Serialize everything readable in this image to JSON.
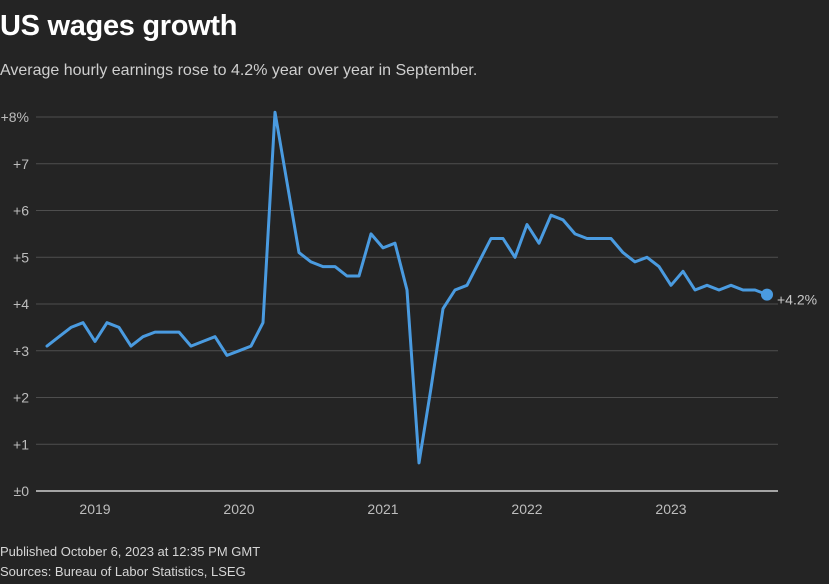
{
  "header": {
    "title": "US wages growth",
    "subtitle": "Average hourly earnings rose to 4.2% year over year in September."
  },
  "footer": {
    "published": "Published October 6, 2023 at 12:35 PM GMT",
    "sources": "Sources: Bureau of Labor Statistics, LSEG"
  },
  "colors": {
    "background": "#242424",
    "line": "#4a9be0",
    "gridline": "#4e4e4e",
    "baseline": "#cfcfcf",
    "text": "#bdbdbd"
  },
  "chart_data": {
    "type": "line",
    "title": "US wages growth",
    "subtitle": "Average hourly earnings rose to 4.2% year over year in September.",
    "xlabel": "",
    "ylabel": "",
    "ylim": [
      0,
      8
    ],
    "grid": true,
    "legend": "none",
    "yticks": [
      {
        "value": 0,
        "label": "±0"
      },
      {
        "value": 1,
        "label": "+1"
      },
      {
        "value": 2,
        "label": "+2"
      },
      {
        "value": 3,
        "label": "+3"
      },
      {
        "value": 4,
        "label": "+4"
      },
      {
        "value": 5,
        "label": "+5"
      },
      {
        "value": 6,
        "label": "+6"
      },
      {
        "value": 7,
        "label": "+7"
      },
      {
        "value": 8,
        "label": "+8%"
      }
    ],
    "xticks": [
      {
        "month_index": 4,
        "label": "2019"
      },
      {
        "month_index": 16,
        "label": "2020"
      },
      {
        "month_index": 28,
        "label": "2021"
      },
      {
        "month_index": 40,
        "label": "2022"
      },
      {
        "month_index": 52,
        "label": "2023"
      }
    ],
    "x_start": "2018-09",
    "x_end": "2023-09",
    "x_range_months": [
      0,
      61.6
    ],
    "series": [
      {
        "name": "Average hourly earnings, YoY %",
        "values": [
          3.1,
          3.3,
          3.5,
          3.6,
          3.2,
          3.6,
          3.5,
          3.1,
          3.3,
          3.4,
          3.4,
          3.4,
          3.1,
          3.2,
          3.3,
          2.9,
          3.0,
          3.1,
          3.6,
          8.1,
          6.6,
          5.1,
          4.9,
          4.8,
          4.8,
          4.6,
          4.6,
          5.5,
          5.2,
          5.3,
          4.3,
          0.6,
          2.2,
          3.9,
          4.3,
          4.4,
          4.9,
          5.4,
          5.4,
          5.0,
          5.7,
          5.3,
          5.9,
          5.8,
          5.5,
          5.4,
          5.4,
          5.4,
          5.1,
          4.9,
          5.0,
          4.8,
          4.4,
          4.7,
          4.3,
          4.4,
          4.3,
          4.4,
          4.3,
          4.3,
          4.2
        ]
      }
    ],
    "annotations": [
      {
        "point_index": 60,
        "label": "+4.2%"
      }
    ]
  }
}
